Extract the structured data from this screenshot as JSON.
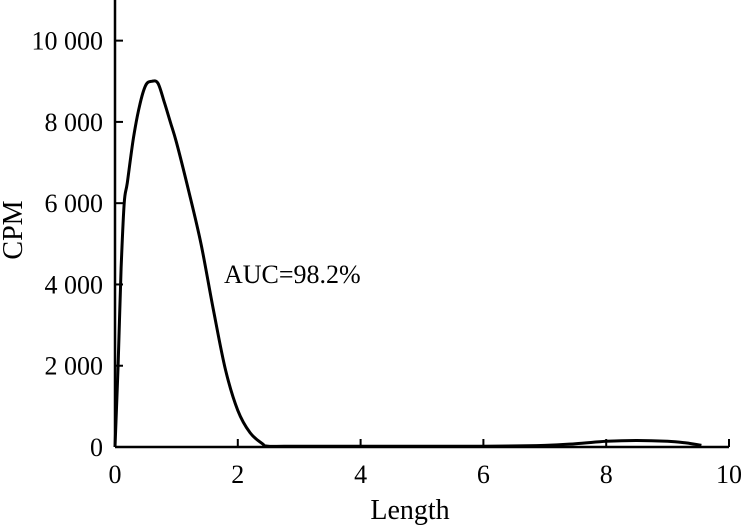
{
  "chart_data": {
    "type": "line",
    "title": "",
    "xlabel": "Length",
    "ylabel": "CPM",
    "xlim": [
      0,
      10
    ],
    "ylim": [
      0,
      11000
    ],
    "x_ticks": [
      0,
      2,
      4,
      6,
      8,
      10
    ],
    "x_tick_labels": [
      "0",
      "2",
      "4",
      "6",
      "8",
      "10"
    ],
    "y_ticks": [
      0,
      2000,
      4000,
      6000,
      8000,
      10000
    ],
    "y_tick_labels": [
      "0",
      "2 000",
      "4 000",
      "6 000",
      "8 000",
      "10 000"
    ],
    "grid": false,
    "annotation": "AUC=98.2%",
    "series": [
      {
        "x": [
          0,
          0.05,
          0.1,
          0.15,
          0.2,
          0.3,
          0.4,
          0.5,
          0.6,
          0.7,
          0.8,
          0.9,
          1.0,
          1.2,
          1.4,
          1.6,
          1.8,
          2.0,
          2.2,
          2.4,
          2.5,
          3,
          4,
          5,
          6,
          7,
          7.5,
          8,
          8.5,
          9,
          9.3,
          9.55
        ],
        "y": [
          0,
          2000,
          4400,
          6000,
          6500,
          7600,
          8400,
          8900,
          9000,
          8950,
          8500,
          8000,
          7500,
          6300,
          5000,
          3400,
          1900,
          900,
          350,
          80,
          20,
          20,
          20,
          20,
          20,
          40,
          80,
          140,
          160,
          140,
          100,
          40
        ]
      }
    ]
  }
}
